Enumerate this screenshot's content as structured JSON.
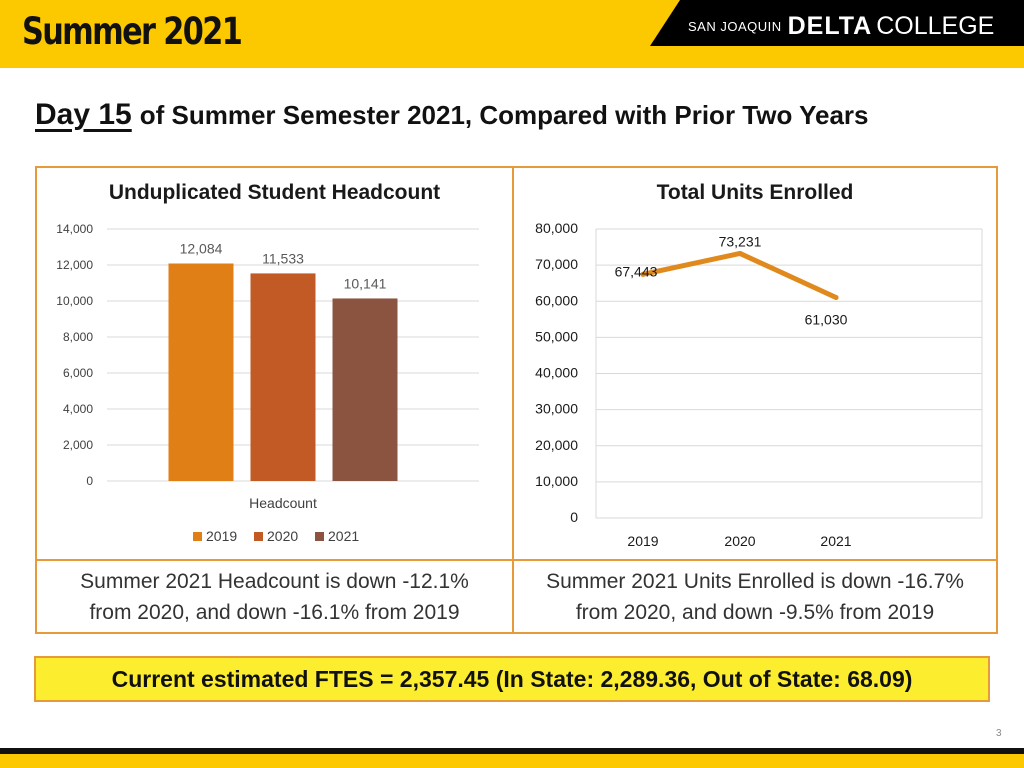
{
  "header": {
    "title": "Summer 2021",
    "brand_small": "SAN JOAQUIN",
    "brand_bold": "DELTA",
    "brand_rest": "COLLEGE"
  },
  "headline": {
    "day": "Day 15",
    "rest": "of Summer Semester 2021, Compared with Prior Two Years"
  },
  "colors": {
    "header_yellow": "#fcc800",
    "panel_border": "#e69a3c",
    "fte_background": "#fcee2e",
    "bar_2019": "#e07f16",
    "bar_2020": "#c25a26",
    "bar_2021": "#8a5440",
    "line": "#e08a1e"
  },
  "chart_data": [
    {
      "type": "bar",
      "title": "Unduplicated Student Headcount",
      "categories": [
        "Headcount"
      ],
      "xlabel": "Headcount",
      "series": [
        {
          "name": "2019",
          "values": [
            12084
          ],
          "label": "12,084"
        },
        {
          "name": "2020",
          "values": [
            11533
          ],
          "label": "11,533"
        },
        {
          "name": "2021",
          "values": [
            10141
          ],
          "label": "10,141"
        }
      ],
      "ylim": [
        0,
        14000
      ],
      "yticks": [
        0,
        2000,
        4000,
        6000,
        8000,
        10000,
        12000,
        14000
      ],
      "ytick_labels": [
        "0",
        "2,000",
        "4,000",
        "6,000",
        "8,000",
        "10,000",
        "12,000",
        "14,000"
      ],
      "legend": "bottom",
      "grid": true
    },
    {
      "type": "line",
      "title": "Total Units Enrolled",
      "x": [
        "2019",
        "2020",
        "2021"
      ],
      "series": [
        {
          "name": "Total Units Enrolled",
          "values": [
            67443,
            73231,
            61030
          ],
          "labels": [
            "67,443",
            "73,231",
            "61,030"
          ]
        }
      ],
      "ylim": [
        0,
        80000
      ],
      "yticks": [
        0,
        10000,
        20000,
        30000,
        40000,
        50000,
        60000,
        70000,
        80000
      ],
      "ytick_labels": [
        "0",
        "10,000",
        "20,000",
        "30,000",
        "40,000",
        "50,000",
        "60,000",
        "70,000",
        "80,000"
      ],
      "grid": true
    }
  ],
  "summaries": {
    "headcount_line1": "Summer 2021 Headcount is down -12.1%",
    "headcount_line2": "from 2020, and down -16.1% from 2019",
    "units_line1": "Summer 2021 Units Enrolled is down -16.7%",
    "units_line2": "from 2020, and down -9.5% from 2019"
  },
  "fte": "Current estimated FTES = 2,357.45 (In State: 2,289.36, Out of State: 68.09)",
  "page_number": "3"
}
